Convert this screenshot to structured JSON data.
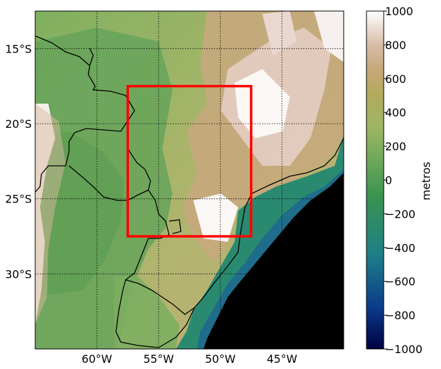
{
  "map": {
    "lon_range": [
      -65,
      -40
    ],
    "lat_range": [
      -35,
      -12.5
    ],
    "lon_gridlines": [
      -60,
      -55,
      -50,
      -45
    ],
    "lat_gridlines": [
      -15,
      -20,
      -25,
      -30
    ],
    "lon_tick_labels": [
      "60°W",
      "55°W",
      "50°W",
      "45°W"
    ],
    "lat_tick_labels": [
      "15°S",
      "20°S",
      "25°S",
      "30°S"
    ],
    "highlight_box": {
      "lon": [
        -57.5,
        -47.5
      ],
      "lat": [
        -27.5,
        -17.5
      ],
      "color": "#ff0000"
    }
  },
  "colorbar": {
    "label": "metros",
    "ticks": [
      1000,
      800,
      600,
      400,
      200,
      0,
      -200,
      -400,
      -600,
      -800,
      -1000
    ],
    "tick_labels": [
      "1000",
      "800",
      "600",
      "400",
      "200",
      "0",
      "−200",
      "−400",
      "−600",
      "−800",
      "−1000"
    ],
    "colormap": "gist_earth-like terrain",
    "stops": [
      "#00003f",
      "#0a4c8e",
      "#1f8c8e",
      "#3e9a50",
      "#7cab5e",
      "#a3b564",
      "#c4a776",
      "#d9b8a3",
      "#ffffff"
    ]
  }
}
